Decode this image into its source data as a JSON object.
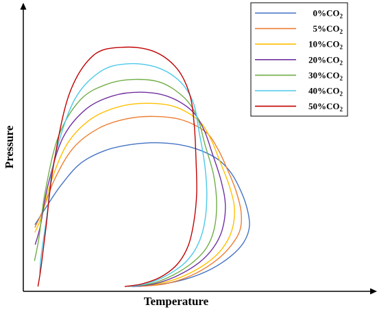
{
  "chart_data": {
    "type": "line",
    "title": "",
    "xlabel": "Temperature",
    "ylabel": "Pressure",
    "grid": false,
    "ticks": false,
    "legend_placement": "top-right",
    "units": "relative (unlabeled axes)",
    "xlim": [
      0,
      100
    ],
    "ylim": [
      0,
      100
    ],
    "series": [
      {
        "name": "0%CO2",
        "label_main": "0%CO",
        "label_sub": "2",
        "color": "#4472C4",
        "points": [
          [
            3.3,
            23.4
          ],
          [
            6.5,
            29.5
          ],
          [
            10.6,
            37.0
          ],
          [
            16.3,
            44.9
          ],
          [
            23.4,
            49.5
          ],
          [
            31.4,
            51.7
          ],
          [
            39.6,
            52.2
          ],
          [
            47.8,
            50.7
          ],
          [
            54.8,
            47.1
          ],
          [
            58.9,
            42.5
          ],
          [
            61.5,
            37.2
          ],
          [
            63.8,
            30.1
          ],
          [
            64.7,
            23.1
          ],
          [
            63.1,
            17.3
          ],
          [
            59.4,
            12.4
          ],
          [
            53.7,
            7.8
          ],
          [
            46.7,
            4.4
          ],
          [
            38.5,
            2.3
          ],
          [
            31.0,
            1.7
          ]
        ]
      },
      {
        "name": "5%CO2",
        "label_main": "5%CO",
        "label_sub": "2",
        "color": "#ED7D31",
        "points": [
          [
            3.3,
            22.4
          ],
          [
            5.7,
            28.8
          ],
          [
            9.0,
            39.5
          ],
          [
            14.3,
            50.4
          ],
          [
            21.4,
            57.2
          ],
          [
            29.4,
            60.6
          ],
          [
            37.2,
            61.5
          ],
          [
            45.3,
            60.3
          ],
          [
            52.2,
            56.0
          ],
          [
            55.7,
            49.9
          ],
          [
            58.4,
            42.8
          ],
          [
            60.8,
            35.5
          ],
          [
            62.3,
            27.9
          ],
          [
            61.9,
            21.2
          ],
          [
            58.7,
            15.0
          ],
          [
            54.1,
            9.9
          ],
          [
            47.9,
            5.5
          ],
          [
            40.5,
            2.6
          ],
          [
            33.0,
            1.7
          ]
        ]
      },
      {
        "name": "10%CO2",
        "label_main": "10%CO",
        "label_sub": "2",
        "color": "#FFC000",
        "points": [
          [
            3.3,
            20.7
          ],
          [
            5.3,
            26.6
          ],
          [
            8.1,
            39.2
          ],
          [
            12.7,
            52.1
          ],
          [
            19.4,
            60.6
          ],
          [
            27.4,
            64.9
          ],
          [
            35.4,
            66.1
          ],
          [
            43.3,
            64.9
          ],
          [
            50.1,
            60.1
          ],
          [
            53.6,
            53.6
          ],
          [
            56.3,
            45.5
          ],
          [
            58.9,
            37.2
          ],
          [
            60.4,
            29.1
          ],
          [
            59.6,
            21.2
          ],
          [
            56.7,
            14.7
          ],
          [
            52.1,
            9.6
          ],
          [
            45.7,
            5.3
          ],
          [
            38.5,
            2.6
          ],
          [
            31.8,
            1.9
          ]
        ]
      },
      {
        "name": "20%CO2",
        "label_main": "20%CO",
        "label_sub": "2",
        "color": "#7030A0",
        "points": [
          [
            3.4,
            16.4
          ],
          [
            4.9,
            23.1
          ],
          [
            7.1,
            37.5
          ],
          [
            11.3,
            53.9
          ],
          [
            17.8,
            63.9
          ],
          [
            25.6,
            68.7
          ],
          [
            33.6,
            70.0
          ],
          [
            41.4,
            68.5
          ],
          [
            48.0,
            63.7
          ],
          [
            51.6,
            57.0
          ],
          [
            54.0,
            48.7
          ],
          [
            56.5,
            39.2
          ],
          [
            57.8,
            30.3
          ],
          [
            56.9,
            21.6
          ],
          [
            54.4,
            15.4
          ],
          [
            50.3,
            10.1
          ],
          [
            44.1,
            5.5
          ],
          [
            37.5,
            2.6
          ],
          [
            31.4,
            1.7
          ]
        ]
      },
      {
        "name": "30%CO2",
        "label_main": "30%CO",
        "label_sub": "2",
        "color": "#70AD47",
        "points": [
          [
            3.2,
            10.7
          ],
          [
            4.5,
            19.0
          ],
          [
            6.2,
            34.6
          ],
          [
            10.0,
            54.3
          ],
          [
            16.3,
            67.3
          ],
          [
            23.9,
            72.8
          ],
          [
            31.9,
            74.5
          ],
          [
            39.6,
            73.3
          ],
          [
            46.1,
            68.0
          ],
          [
            49.8,
            61.1
          ],
          [
            52.0,
            51.4
          ],
          [
            54.4,
            41.1
          ],
          [
            55.3,
            31.0
          ],
          [
            54.6,
            21.9
          ],
          [
            52.3,
            15.1
          ],
          [
            48.2,
            9.9
          ],
          [
            42.5,
            5.5
          ],
          [
            36.3,
            2.6
          ],
          [
            30.0,
            1.7
          ]
        ]
      },
      {
        "name": "40%CO2",
        "label_main": "40%CO",
        "label_sub": "2",
        "color": "#4BC8E8",
        "points": [
          [
            4.7,
            6.3
          ],
          [
            5.1,
            12.5
          ],
          [
            6.7,
            26.2
          ],
          [
            8.9,
            46.4
          ],
          [
            14.5,
            67.0
          ],
          [
            22.1,
            77.3
          ],
          [
            30.0,
            80.0
          ],
          [
            38.3,
            78.7
          ],
          [
            44.8,
            73.8
          ],
          [
            48.6,
            66.4
          ],
          [
            50.3,
            56.0
          ],
          [
            51.9,
            44.5
          ],
          [
            52.5,
            33.4
          ],
          [
            51.7,
            23.1
          ],
          [
            49.6,
            15.6
          ],
          [
            46.1,
            9.9
          ],
          [
            40.9,
            5.5
          ],
          [
            35.1,
            2.6
          ],
          [
            29.8,
            1.7
          ]
        ]
      },
      {
        "name": "50%CO2",
        "label_main": "50%CO",
        "label_sub": "2",
        "color": "#C00000",
        "points": [
          [
            4.2,
            1.7
          ],
          [
            5.1,
            8.7
          ],
          [
            6.5,
            22.6
          ],
          [
            8.6,
            44.0
          ],
          [
            13.1,
            69.2
          ],
          [
            20.0,
            82.9
          ],
          [
            28.5,
            85.8
          ],
          [
            37.2,
            84.4
          ],
          [
            43.9,
            78.4
          ],
          [
            47.6,
            69.2
          ],
          [
            48.9,
            58.4
          ],
          [
            49.4,
            46.4
          ],
          [
            49.6,
            34.6
          ],
          [
            48.8,
            24.5
          ],
          [
            47.2,
            16.1
          ],
          [
            44.1,
            9.6
          ],
          [
            39.4,
            5.1
          ],
          [
            33.9,
            2.6
          ],
          [
            29.0,
            1.7
          ]
        ]
      }
    ]
  }
}
